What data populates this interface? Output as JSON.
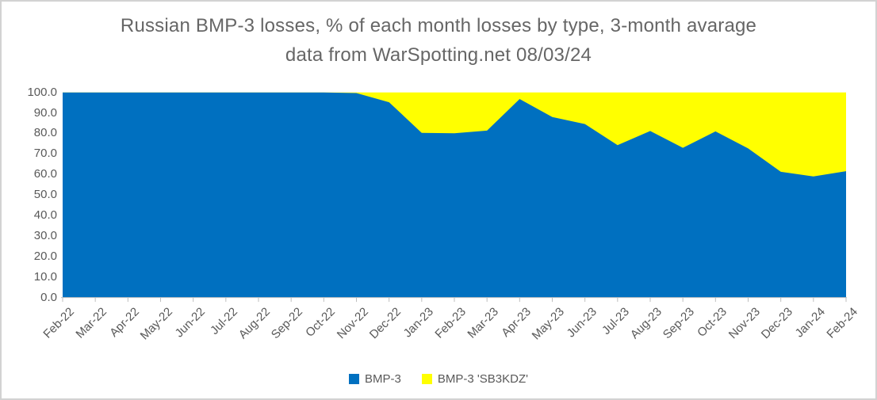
{
  "chart_data": {
    "type": "area",
    "stacked_percent": true,
    "title": "Russian BMP-3 losses, % of each month losses by type, 3-month avarage",
    "subtitle": "data from WarSpotting.net 08/03/24",
    "categories": [
      "Feb-22",
      "Mar-22",
      "Apr-22",
      "May-22",
      "Jun-22",
      "Jul-22",
      "Aug-22",
      "Sep-22",
      "Oct-22",
      "Nov-22",
      "Dec-22",
      "Jan-23",
      "Feb-23",
      "Mar-23",
      "Apr-23",
      "May-23",
      "Jun-23",
      "Jul-23",
      "Aug-23",
      "Sep-23",
      "Oct-23",
      "Nov-23",
      "Dec-23",
      "Jan-24",
      "Feb-24"
    ],
    "series": [
      {
        "name": "BMP-3",
        "color": "#0070C0",
        "values": [
          100,
          100,
          100,
          100,
          100,
          100,
          100,
          100,
          100,
          99.7,
          95.2,
          80.3,
          80.1,
          81.4,
          96.8,
          88.0,
          84.6,
          74.3,
          81.2,
          73.0,
          81.0,
          72.7,
          61.3,
          59.0,
          61.6
        ]
      },
      {
        "name": "BMP-3 'SB3KDZ'",
        "color": "#FFFF00",
        "values": [
          0,
          0,
          0,
          0,
          0,
          0,
          0,
          0,
          0,
          0.3,
          4.8,
          19.7,
          19.9,
          18.6,
          3.2,
          12.0,
          15.4,
          25.7,
          18.8,
          27.0,
          19.0,
          27.3,
          38.7,
          41.0,
          38.4
        ]
      }
    ],
    "xlabel": "",
    "ylabel": "",
    "ylim": [
      0,
      100
    ],
    "ytick_step": 10,
    "ytick_decimals": 1,
    "grid": false,
    "legend_position": "bottom",
    "axis_color": "#bfbfbf",
    "label_color": "#595959"
  }
}
